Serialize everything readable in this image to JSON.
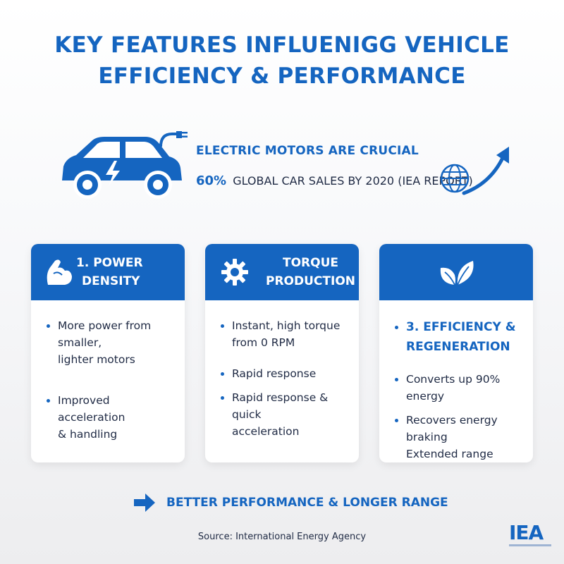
{
  "title": {
    "line1": "KEY FEATURES INFLUENIGG VEHICLE",
    "line2": "EFFICIENCY & PERFORMANCE"
  },
  "hero": {
    "headline": "ELECTRIC MOTORS ARE CRUCIAL",
    "stat_value": "60%",
    "stat_text": "GLOBAL CAR SALES BY 2020 (IEA REPORT)",
    "icons": [
      "electric-car-icon",
      "plug-icon",
      "lightning-icon",
      "globe-icon",
      "trend-up-arrow-icon"
    ]
  },
  "cards": [
    {
      "icon": "flexed-arm-icon",
      "heading_line1": "1.  POWER",
      "heading_line2": "DENSITY",
      "bullets": [
        {
          "line1": "More power from",
          "line2": "smaller,",
          "line3": "lighter motors"
        },
        {
          "line1": "Improved acceleration",
          "line2": "& handling"
        }
      ]
    },
    {
      "icon": "gear-icon",
      "heading_line1": "TORQUE",
      "heading_line2": "PRODUCTION",
      "bullets": [
        {
          "line1": "Instant, high torque",
          "line2": "from 0 RPM"
        },
        {
          "line1": "Rapid response"
        },
        {
          "line1": "Rapid response & quick",
          "line2": "acceleration"
        }
      ]
    },
    {
      "icon": "leaves-icon",
      "body_heading_line1": "3. EFFICIENCY &",
      "body_heading_line2": "REGENERATION",
      "bullets": [
        {
          "line1": "Converts up 90% energy"
        },
        {
          "line1": "Recovers energy braking",
          "line2": "Extended range"
        }
      ]
    }
  ],
  "conclusion": "BETTER PERFORMANCE & LONGER RANGE",
  "source": "Source: International Energy Agency",
  "logo": "IEA",
  "colors": {
    "accent": "#1565c0",
    "text": "#1f2a44",
    "background": "#f3f4f6",
    "card": "#ffffff"
  }
}
